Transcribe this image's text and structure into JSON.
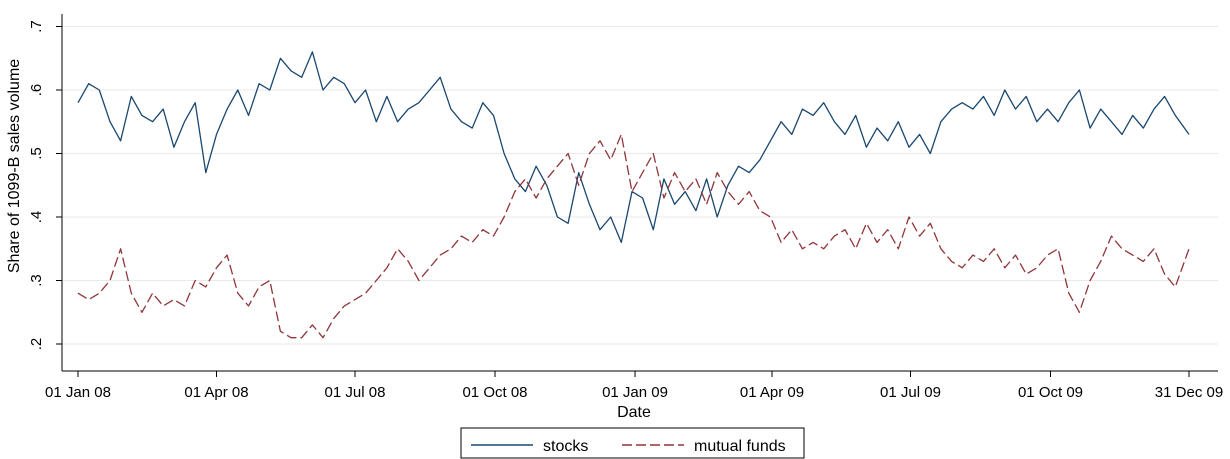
{
  "chart_data": {
    "type": "line",
    "title": "",
    "xlabel": "Date",
    "ylabel": "Share of 1099-B sales volume",
    "x_range": [
      "2008-01-01",
      "2009-12-31"
    ],
    "ylim": [
      0.18,
      0.72
    ],
    "y_ticks": [
      {
        "value": 0.2,
        "label": ".2"
      },
      {
        "value": 0.3,
        "label": ".3"
      },
      {
        "value": 0.4,
        "label": ".4"
      },
      {
        "value": 0.5,
        "label": ".5"
      },
      {
        "value": 0.6,
        "label": ".6"
      },
      {
        "value": 0.7,
        "label": ".7"
      }
    ],
    "x_ticks": [
      {
        "date": "2008-01-01",
        "label": "01 Jan 08"
      },
      {
        "date": "2008-04-01",
        "label": "01 Apr 08"
      },
      {
        "date": "2008-07-01",
        "label": "01 Jul 08"
      },
      {
        "date": "2008-10-01",
        "label": "01 Oct 08"
      },
      {
        "date": "2009-01-01",
        "label": "01 Jan 09"
      },
      {
        "date": "2009-04-01",
        "label": "01 Apr 09"
      },
      {
        "date": "2009-07-01",
        "label": "01 Jul 09"
      },
      {
        "date": "2009-10-01",
        "label": "01 Oct 09"
      },
      {
        "date": "2009-12-31",
        "label": "31 Dec 09"
      }
    ],
    "grid": true,
    "legend_position": "bottom",
    "series": [
      {
        "name": "stocks",
        "color": "#1a476f",
        "dash": "solid",
        "points": [
          [
            "2008-01-01",
            0.58
          ],
          [
            "2008-01-08",
            0.61
          ],
          [
            "2008-01-15",
            0.6
          ],
          [
            "2008-01-22",
            0.55
          ],
          [
            "2008-01-29",
            0.52
          ],
          [
            "2008-02-05",
            0.59
          ],
          [
            "2008-02-12",
            0.56
          ],
          [
            "2008-02-19",
            0.55
          ],
          [
            "2008-02-26",
            0.57
          ],
          [
            "2008-03-04",
            0.51
          ],
          [
            "2008-03-11",
            0.55
          ],
          [
            "2008-03-18",
            0.58
          ],
          [
            "2008-03-25",
            0.47
          ],
          [
            "2008-04-01",
            0.53
          ],
          [
            "2008-04-08",
            0.57
          ],
          [
            "2008-04-15",
            0.6
          ],
          [
            "2008-04-22",
            0.56
          ],
          [
            "2008-04-29",
            0.61
          ],
          [
            "2008-05-06",
            0.6
          ],
          [
            "2008-05-13",
            0.65
          ],
          [
            "2008-05-20",
            0.63
          ],
          [
            "2008-05-27",
            0.62
          ],
          [
            "2008-06-03",
            0.66
          ],
          [
            "2008-06-10",
            0.6
          ],
          [
            "2008-06-17",
            0.62
          ],
          [
            "2008-06-24",
            0.61
          ],
          [
            "2008-07-01",
            0.58
          ],
          [
            "2008-07-08",
            0.6
          ],
          [
            "2008-07-15",
            0.55
          ],
          [
            "2008-07-22",
            0.59
          ],
          [
            "2008-07-29",
            0.55
          ],
          [
            "2008-08-05",
            0.57
          ],
          [
            "2008-08-12",
            0.58
          ],
          [
            "2008-08-19",
            0.6
          ],
          [
            "2008-08-26",
            0.62
          ],
          [
            "2008-09-02",
            0.57
          ],
          [
            "2008-09-09",
            0.55
          ],
          [
            "2008-09-16",
            0.54
          ],
          [
            "2008-09-23",
            0.58
          ],
          [
            "2008-09-30",
            0.56
          ],
          [
            "2008-10-07",
            0.5
          ],
          [
            "2008-10-14",
            0.46
          ],
          [
            "2008-10-21",
            0.44
          ],
          [
            "2008-10-28",
            0.48
          ],
          [
            "2008-11-04",
            0.45
          ],
          [
            "2008-11-11",
            0.4
          ],
          [
            "2008-11-18",
            0.39
          ],
          [
            "2008-11-25",
            0.47
          ],
          [
            "2008-12-02",
            0.42
          ],
          [
            "2008-12-09",
            0.38
          ],
          [
            "2008-12-16",
            0.4
          ],
          [
            "2008-12-23",
            0.36
          ],
          [
            "2008-12-30",
            0.44
          ],
          [
            "2009-01-06",
            0.43
          ],
          [
            "2009-01-13",
            0.38
          ],
          [
            "2009-01-20",
            0.46
          ],
          [
            "2009-01-27",
            0.42
          ],
          [
            "2009-02-03",
            0.44
          ],
          [
            "2009-02-10",
            0.41
          ],
          [
            "2009-02-17",
            0.46
          ],
          [
            "2009-02-24",
            0.4
          ],
          [
            "2009-03-03",
            0.45
          ],
          [
            "2009-03-10",
            0.48
          ],
          [
            "2009-03-17",
            0.47
          ],
          [
            "2009-03-24",
            0.49
          ],
          [
            "2009-03-31",
            0.52
          ],
          [
            "2009-04-07",
            0.55
          ],
          [
            "2009-04-14",
            0.53
          ],
          [
            "2009-04-21",
            0.57
          ],
          [
            "2009-04-28",
            0.56
          ],
          [
            "2009-05-05",
            0.58
          ],
          [
            "2009-05-12",
            0.55
          ],
          [
            "2009-05-19",
            0.53
          ],
          [
            "2009-05-26",
            0.56
          ],
          [
            "2009-06-02",
            0.51
          ],
          [
            "2009-06-09",
            0.54
          ],
          [
            "2009-06-16",
            0.52
          ],
          [
            "2009-06-23",
            0.55
          ],
          [
            "2009-06-30",
            0.51
          ],
          [
            "2009-07-07",
            0.53
          ],
          [
            "2009-07-14",
            0.5
          ],
          [
            "2009-07-21",
            0.55
          ],
          [
            "2009-07-28",
            0.57
          ],
          [
            "2009-08-04",
            0.58
          ],
          [
            "2009-08-11",
            0.57
          ],
          [
            "2009-08-18",
            0.59
          ],
          [
            "2009-08-25",
            0.56
          ],
          [
            "2009-09-01",
            0.6
          ],
          [
            "2009-09-08",
            0.57
          ],
          [
            "2009-09-15",
            0.59
          ],
          [
            "2009-09-22",
            0.55
          ],
          [
            "2009-09-29",
            0.57
          ],
          [
            "2009-10-06",
            0.55
          ],
          [
            "2009-10-13",
            0.58
          ],
          [
            "2009-10-20",
            0.6
          ],
          [
            "2009-10-27",
            0.54
          ],
          [
            "2009-11-03",
            0.57
          ],
          [
            "2009-11-10",
            0.55
          ],
          [
            "2009-11-17",
            0.53
          ],
          [
            "2009-11-24",
            0.56
          ],
          [
            "2009-12-01",
            0.54
          ],
          [
            "2009-12-08",
            0.57
          ],
          [
            "2009-12-15",
            0.59
          ],
          [
            "2009-12-22",
            0.56
          ],
          [
            "2009-12-31",
            0.53
          ]
        ]
      },
      {
        "name": "mutual funds",
        "color": "#90353b",
        "dash": "dashed",
        "points": [
          [
            "2008-01-01",
            0.28
          ],
          [
            "2008-01-08",
            0.27
          ],
          [
            "2008-01-15",
            0.28
          ],
          [
            "2008-01-22",
            0.3
          ],
          [
            "2008-01-29",
            0.35
          ],
          [
            "2008-02-05",
            0.28
          ],
          [
            "2008-02-12",
            0.25
          ],
          [
            "2008-02-19",
            0.28
          ],
          [
            "2008-02-26",
            0.26
          ],
          [
            "2008-03-04",
            0.27
          ],
          [
            "2008-03-11",
            0.26
          ],
          [
            "2008-03-18",
            0.3
          ],
          [
            "2008-03-25",
            0.29
          ],
          [
            "2008-04-01",
            0.32
          ],
          [
            "2008-04-08",
            0.34
          ],
          [
            "2008-04-15",
            0.28
          ],
          [
            "2008-04-22",
            0.26
          ],
          [
            "2008-04-29",
            0.29
          ],
          [
            "2008-05-06",
            0.3
          ],
          [
            "2008-05-13",
            0.22
          ],
          [
            "2008-05-20",
            0.21
          ],
          [
            "2008-05-27",
            0.21
          ],
          [
            "2008-06-03",
            0.23
          ],
          [
            "2008-06-10",
            0.21
          ],
          [
            "2008-06-17",
            0.24
          ],
          [
            "2008-06-24",
            0.26
          ],
          [
            "2008-07-01",
            0.27
          ],
          [
            "2008-07-08",
            0.28
          ],
          [
            "2008-07-15",
            0.3
          ],
          [
            "2008-07-22",
            0.32
          ],
          [
            "2008-07-29",
            0.35
          ],
          [
            "2008-08-05",
            0.33
          ],
          [
            "2008-08-12",
            0.3
          ],
          [
            "2008-08-19",
            0.32
          ],
          [
            "2008-08-26",
            0.34
          ],
          [
            "2008-09-02",
            0.35
          ],
          [
            "2008-09-09",
            0.37
          ],
          [
            "2008-09-16",
            0.36
          ],
          [
            "2008-09-23",
            0.38
          ],
          [
            "2008-09-30",
            0.37
          ],
          [
            "2008-10-07",
            0.4
          ],
          [
            "2008-10-14",
            0.44
          ],
          [
            "2008-10-21",
            0.46
          ],
          [
            "2008-10-28",
            0.43
          ],
          [
            "2008-11-04",
            0.46
          ],
          [
            "2008-11-11",
            0.48
          ],
          [
            "2008-11-18",
            0.5
          ],
          [
            "2008-11-25",
            0.45
          ],
          [
            "2008-12-02",
            0.5
          ],
          [
            "2008-12-09",
            0.52
          ],
          [
            "2008-12-16",
            0.49
          ],
          [
            "2008-12-23",
            0.53
          ],
          [
            "2008-12-30",
            0.44
          ],
          [
            "2009-01-06",
            0.47
          ],
          [
            "2009-01-13",
            0.5
          ],
          [
            "2009-01-20",
            0.43
          ],
          [
            "2009-01-27",
            0.47
          ],
          [
            "2009-02-03",
            0.44
          ],
          [
            "2009-02-10",
            0.46
          ],
          [
            "2009-02-17",
            0.42
          ],
          [
            "2009-02-24",
            0.47
          ],
          [
            "2009-03-03",
            0.44
          ],
          [
            "2009-03-10",
            0.42
          ],
          [
            "2009-03-17",
            0.44
          ],
          [
            "2009-03-24",
            0.41
          ],
          [
            "2009-03-31",
            0.4
          ],
          [
            "2009-04-07",
            0.36
          ],
          [
            "2009-04-14",
            0.38
          ],
          [
            "2009-04-21",
            0.35
          ],
          [
            "2009-04-28",
            0.36
          ],
          [
            "2009-05-05",
            0.35
          ],
          [
            "2009-05-12",
            0.37
          ],
          [
            "2009-05-19",
            0.38
          ],
          [
            "2009-05-26",
            0.35
          ],
          [
            "2009-06-02",
            0.39
          ],
          [
            "2009-06-09",
            0.36
          ],
          [
            "2009-06-16",
            0.38
          ],
          [
            "2009-06-23",
            0.35
          ],
          [
            "2009-06-30",
            0.4
          ],
          [
            "2009-07-07",
            0.37
          ],
          [
            "2009-07-14",
            0.39
          ],
          [
            "2009-07-21",
            0.35
          ],
          [
            "2009-07-28",
            0.33
          ],
          [
            "2009-08-04",
            0.32
          ],
          [
            "2009-08-11",
            0.34
          ],
          [
            "2009-08-18",
            0.33
          ],
          [
            "2009-08-25",
            0.35
          ],
          [
            "2009-09-01",
            0.32
          ],
          [
            "2009-09-08",
            0.34
          ],
          [
            "2009-09-15",
            0.31
          ],
          [
            "2009-09-22",
            0.32
          ],
          [
            "2009-09-29",
            0.34
          ],
          [
            "2009-10-06",
            0.35
          ],
          [
            "2009-10-13",
            0.28
          ],
          [
            "2009-10-20",
            0.25
          ],
          [
            "2009-10-27",
            0.3
          ],
          [
            "2009-11-03",
            0.33
          ],
          [
            "2009-11-10",
            0.37
          ],
          [
            "2009-11-17",
            0.35
          ],
          [
            "2009-11-24",
            0.34
          ],
          [
            "2009-12-01",
            0.33
          ],
          [
            "2009-12-08",
            0.35
          ],
          [
            "2009-12-15",
            0.31
          ],
          [
            "2009-12-22",
            0.29
          ],
          [
            "2009-12-31",
            0.35
          ]
        ]
      }
    ]
  }
}
